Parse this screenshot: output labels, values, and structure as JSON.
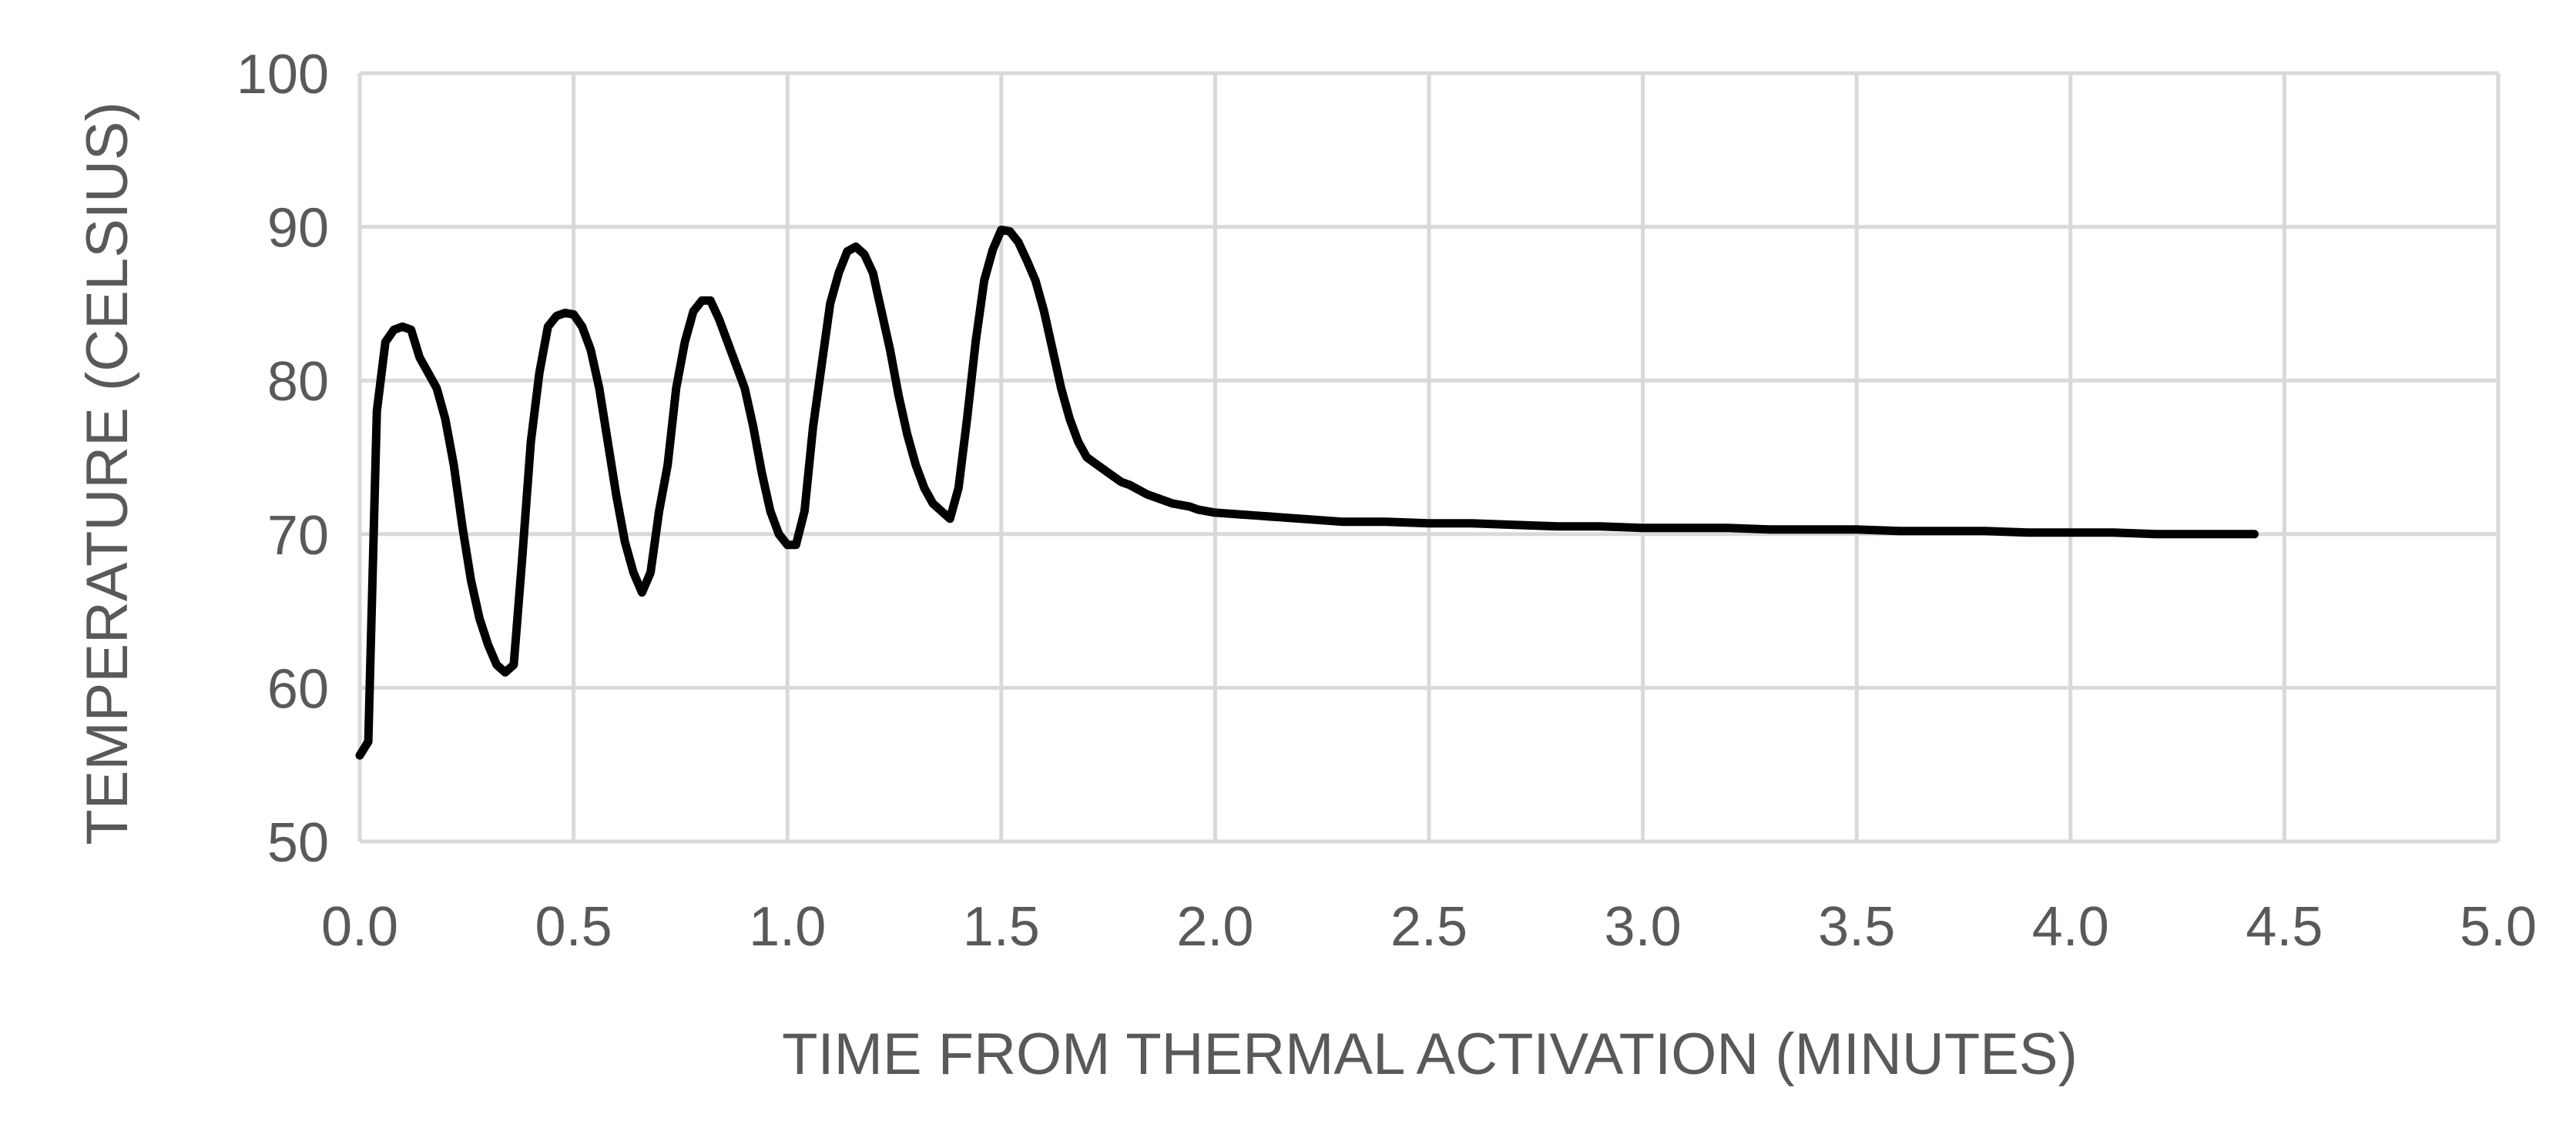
{
  "chart_data": {
    "type": "line",
    "title": "",
    "xlabel": "TIME FROM THERMAL ACTIVATION (MINUTES)",
    "ylabel": "TEMPERATURE (CELSIUS)",
    "xlim": [
      0,
      5
    ],
    "ylim": [
      50,
      100
    ],
    "xticks": [
      0,
      0.5,
      1,
      1.5,
      2,
      2.5,
      3,
      3.5,
      4,
      4.5,
      5
    ],
    "xtick_labels": [
      "0.0",
      "0.5",
      "1.0",
      "1.5",
      "2.0",
      "2.5",
      "3.0",
      "3.5",
      "4.0",
      "4.5",
      "5.0"
    ],
    "yticks": [
      50,
      60,
      70,
      80,
      90,
      100
    ],
    "ytick_labels": [
      "50",
      "60",
      "70",
      "80",
      "90",
      "100"
    ],
    "grid": true,
    "legend": "none",
    "colors": {
      "line": "#000000",
      "grid": "#d9d9d9",
      "text": "#595959"
    },
    "series": [
      {
        "name": "Temperature",
        "x": [
          0.0,
          0.02,
          0.04,
          0.06,
          0.08,
          0.1,
          0.12,
          0.14,
          0.16,
          0.18,
          0.2,
          0.22,
          0.24,
          0.26,
          0.28,
          0.3,
          0.32,
          0.34,
          0.36,
          0.38,
          0.4,
          0.42,
          0.44,
          0.46,
          0.48,
          0.5,
          0.52,
          0.54,
          0.56,
          0.58,
          0.6,
          0.62,
          0.64,
          0.66,
          0.68,
          0.7,
          0.72,
          0.74,
          0.76,
          0.78,
          0.8,
          0.82,
          0.84,
          0.86,
          0.88,
          0.9,
          0.92,
          0.94,
          0.96,
          0.98,
          1.0,
          1.02,
          1.04,
          1.06,
          1.08,
          1.1,
          1.12,
          1.14,
          1.16,
          1.18,
          1.2,
          1.22,
          1.24,
          1.26,
          1.28,
          1.3,
          1.32,
          1.34,
          1.36,
          1.38,
          1.4,
          1.42,
          1.44,
          1.46,
          1.48,
          1.5,
          1.52,
          1.54,
          1.56,
          1.58,
          1.6,
          1.62,
          1.64,
          1.66,
          1.68,
          1.7,
          1.72,
          1.74,
          1.76,
          1.78,
          1.8,
          1.82,
          1.84,
          1.86,
          1.88,
          1.9,
          1.92,
          1.94,
          1.96,
          1.98,
          2.0,
          2.05,
          2.1,
          2.15,
          2.2,
          2.25,
          2.3,
          2.4,
          2.5,
          2.6,
          2.7,
          2.8,
          2.9,
          3.0,
          3.1,
          3.2,
          3.3,
          3.4,
          3.5,
          3.6,
          3.7,
          3.8,
          3.9,
          4.0,
          4.1,
          4.2,
          4.3,
          4.35,
          4.4,
          4.43
        ],
        "y": [
          55.6,
          56.5,
          78.0,
          82.5,
          83.3,
          83.5,
          83.3,
          81.5,
          80.5,
          79.5,
          77.5,
          74.5,
          70.5,
          67.0,
          64.5,
          62.8,
          61.5,
          61.0,
          61.5,
          68.5,
          76.0,
          80.5,
          83.5,
          84.2,
          84.4,
          84.3,
          83.5,
          82.0,
          79.5,
          76.0,
          72.5,
          69.5,
          67.5,
          66.2,
          67.5,
          71.5,
          74.5,
          79.5,
          82.5,
          84.5,
          85.2,
          85.2,
          84.0,
          82.5,
          81.0,
          79.5,
          77.0,
          74.0,
          71.5,
          70.0,
          69.3,
          69.3,
          71.5,
          77.0,
          81.0,
          85.0,
          87.0,
          88.4,
          88.7,
          88.2,
          87.0,
          84.5,
          82.0,
          79.0,
          76.5,
          74.5,
          73.0,
          72.0,
          71.5,
          71.0,
          73.0,
          77.5,
          82.5,
          86.5,
          88.5,
          89.8,
          89.7,
          89.0,
          87.8,
          86.5,
          84.5,
          82.0,
          79.5,
          77.5,
          76.0,
          75.0,
          74.6,
          74.2,
          73.8,
          73.4,
          73.2,
          72.9,
          72.6,
          72.4,
          72.2,
          72.0,
          71.9,
          71.8,
          71.6,
          71.5,
          71.4,
          71.3,
          71.2,
          71.1,
          71.0,
          70.9,
          70.8,
          70.8,
          70.7,
          70.7,
          70.6,
          70.5,
          70.5,
          70.4,
          70.4,
          70.4,
          70.3,
          70.3,
          70.3,
          70.2,
          70.2,
          70.2,
          70.1,
          70.1,
          70.1,
          70.0,
          70.0,
          70.0,
          70.0,
          70.0
        ]
      }
    ]
  }
}
